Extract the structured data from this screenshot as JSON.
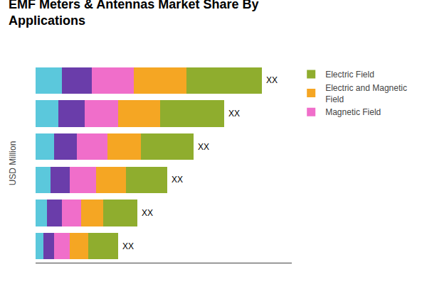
{
  "chart_data": {
    "type": "bar",
    "title": "EMF Meters & Antennas Market Share By\nApplications",
    "ylabel": "USD Million",
    "orientation": "horizontal",
    "stacked": true,
    "categories": [
      null,
      null,
      null,
      null,
      null,
      null
    ],
    "series": [
      {
        "color": "#5BC8DC",
        "values": [
          7,
          6,
          5,
          4,
          3,
          2
        ]
      },
      {
        "color": "#6A3DAA",
        "values": [
          8,
          7,
          6,
          5,
          4,
          3
        ]
      },
      {
        "name": "Magnetic Field",
        "color": "#F06ECA",
        "values": [
          11,
          9,
          8,
          7,
          5,
          4
        ]
      },
      {
        "name": "Electric and Magnetic\nField",
        "color": "#F5A623",
        "values": [
          14,
          11,
          9,
          8,
          6,
          5
        ]
      },
      {
        "name": "Electric Field",
        "color": "#8FAD2E",
        "values": [
          20,
          17,
          14,
          11,
          9,
          8
        ]
      }
    ],
    "annotations": [
      "XX",
      "XX",
      "XX",
      "XX",
      "XX",
      "XX"
    ],
    "xlim": [
      0,
      68
    ],
    "xticks": [],
    "tick_labels": false,
    "grid": false,
    "legend": "right"
  }
}
